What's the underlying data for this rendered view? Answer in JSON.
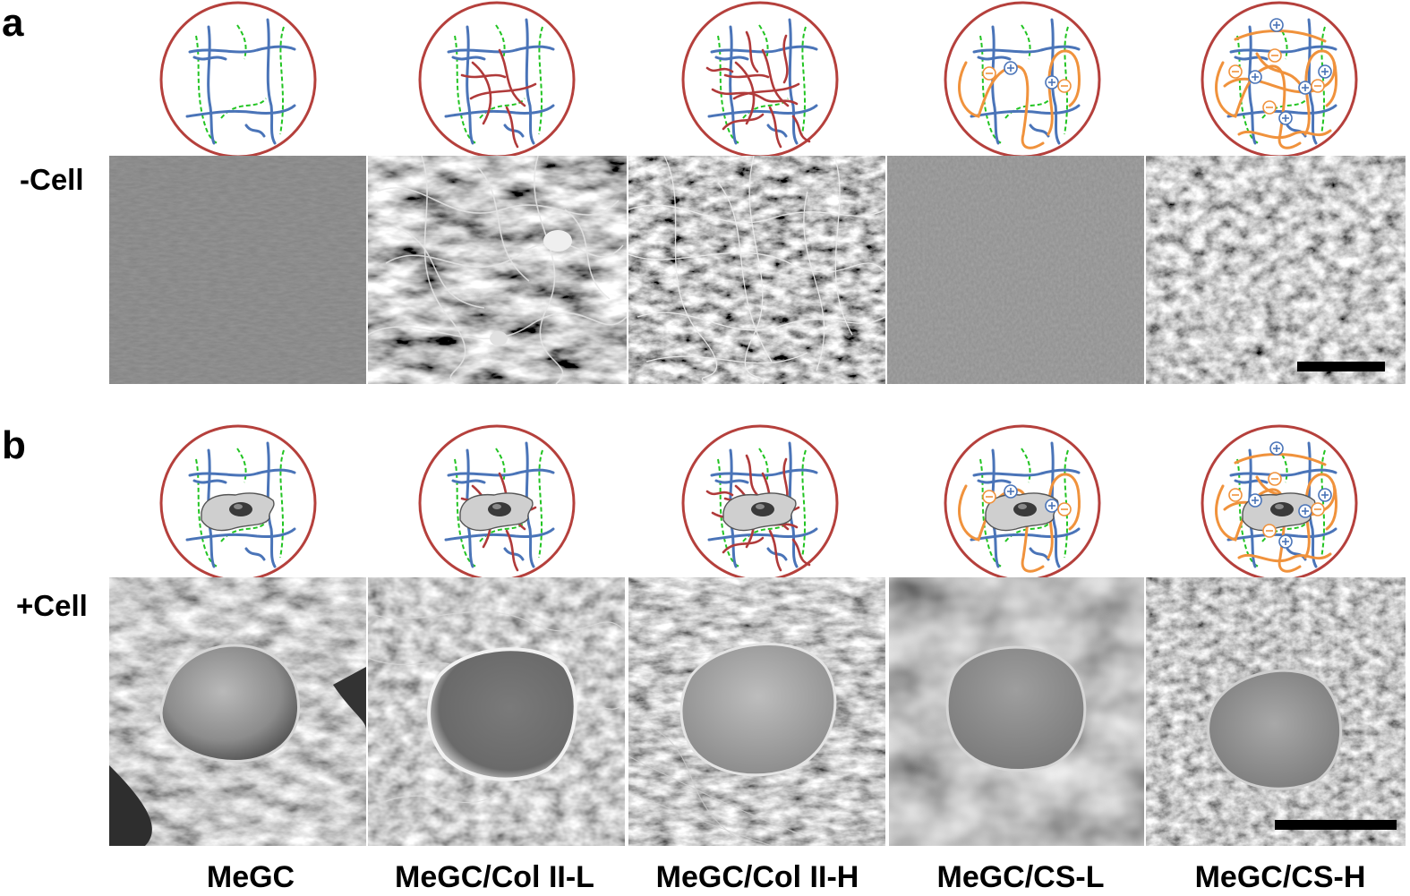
{
  "panels": {
    "a": {
      "letter": "a",
      "row_label": "-Cell"
    },
    "b": {
      "letter": "b",
      "row_label": "+Cell"
    }
  },
  "groups": [
    {
      "label": "MeGC",
      "collagen": "none",
      "cs": "none"
    },
    {
      "label": "MeGC/Col II-L",
      "collagen": "low",
      "cs": "none"
    },
    {
      "label": "MeGC/Col II-H",
      "collagen": "high",
      "cs": "none"
    },
    {
      "label": "MeGC/CS-L",
      "collagen": "none",
      "cs": "low"
    },
    {
      "label": "MeGC/CS-H",
      "collagen": "none",
      "cs": "high"
    }
  ],
  "colors": {
    "circle": "#b5403c",
    "megc_network": "#4a74b8",
    "crosslink": "#22c422",
    "collagen": "#b03a3a",
    "cs": "#f0923c",
    "cell": "#cfcfcf",
    "scale_bar": "#000000"
  },
  "icons": [
    "hydrogel-schematic-icon",
    "cell-icon",
    "plus-charge-icon",
    "minus-charge-icon"
  ]
}
